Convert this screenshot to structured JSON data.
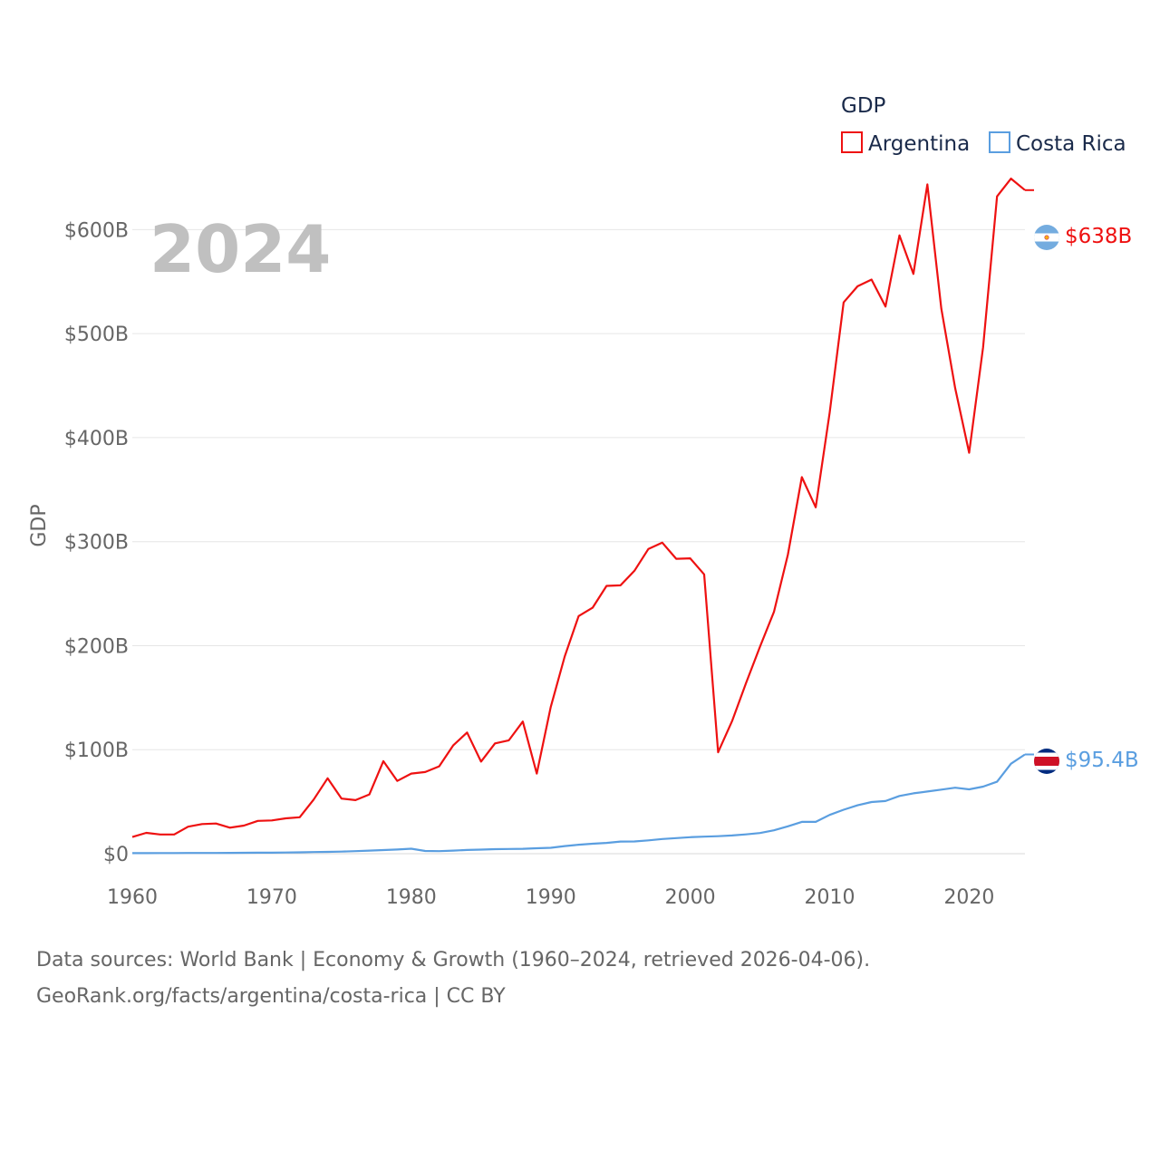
{
  "chart_data": {
    "type": "line",
    "title": "GDP",
    "year_label": "2024",
    "ylabel": "GDP",
    "xlim": [
      1960,
      2024
    ],
    "ylim": [
      0,
      650
    ],
    "x_ticks": [
      1960,
      1970,
      1980,
      1990,
      2000,
      2010,
      2020
    ],
    "x_tick_labels": [
      "1960",
      "1970",
      "1980",
      "1990",
      "2000",
      "2010",
      "2020"
    ],
    "y_ticks": [
      0,
      100,
      200,
      300,
      400,
      500,
      600
    ],
    "y_tick_labels": [
      "$0",
      "$100B",
      "$200B",
      "$300B",
      "$400B",
      "$500B",
      "$600B"
    ],
    "legend": {
      "title": "GDP",
      "entries": [
        "Argentina",
        "Costa Rica"
      ]
    },
    "series": [
      {
        "name": "Argentina",
        "color": "#ee1111",
        "end_label": "$638B",
        "flag": "argentina-flag-icon",
        "x": [
          1960,
          1961,
          1962,
          1963,
          1964,
          1965,
          1966,
          1967,
          1968,
          1969,
          1970,
          1971,
          1972,
          1973,
          1974,
          1975,
          1976,
          1977,
          1978,
          1979,
          1980,
          1981,
          1982,
          1983,
          1984,
          1985,
          1986,
          1987,
          1988,
          1989,
          1990,
          1991,
          1992,
          1993,
          1994,
          1995,
          1996,
          1997,
          1998,
          1999,
          2000,
          2001,
          2002,
          2003,
          2004,
          2005,
          2006,
          2007,
          2008,
          2009,
          2010,
          2011,
          2012,
          2013,
          2014,
          2015,
          2016,
          2017,
          2018,
          2019,
          2020,
          2021,
          2022,
          2023,
          2024
        ],
        "values": [
          16,
          20,
          18.5,
          18.5,
          26,
          28.5,
          29,
          25,
          27,
          31.5,
          32,
          34,
          35,
          52,
          72.5,
          53,
          51.5,
          57,
          89,
          70,
          77,
          78.5,
          84,
          104,
          116.5,
          88.5,
          106,
          109,
          127,
          77,
          141,
          189.5,
          228.5,
          236.5,
          257.5,
          258,
          272,
          293,
          299,
          283.5,
          284,
          268.5,
          97.5,
          127.5,
          164,
          199,
          232.5,
          287.5,
          362,
          333,
          424,
          530,
          545.5,
          552,
          526,
          594.5,
          557.5,
          643.5,
          524,
          447.5,
          385.5,
          487,
          632,
          649,
          638
        ]
      },
      {
        "name": "Costa Rica",
        "color": "#5a9ee0",
        "end_label": "$95.4B",
        "flag": "costa-rica-flag-icon",
        "x": [
          1960,
          1961,
          1962,
          1963,
          1964,
          1965,
          1966,
          1967,
          1968,
          1969,
          1970,
          1971,
          1972,
          1973,
          1974,
          1975,
          1976,
          1977,
          1978,
          1979,
          1980,
          1981,
          1982,
          1983,
          1984,
          1985,
          1986,
          1987,
          1988,
          1989,
          1990,
          1991,
          1992,
          1993,
          1994,
          1995,
          1996,
          1997,
          1998,
          1999,
          2000,
          2001,
          2002,
          2003,
          2004,
          2005,
          2006,
          2007,
          2008,
          2009,
          2010,
          2011,
          2012,
          2013,
          2014,
          2015,
          2016,
          2017,
          2018,
          2019,
          2020,
          2021,
          2022,
          2023,
          2024
        ],
        "values": [
          0.5,
          0.5,
          0.6,
          0.6,
          0.7,
          0.7,
          0.7,
          0.8,
          0.9,
          1.0,
          1.0,
          1.1,
          1.3,
          1.6,
          1.7,
          2.0,
          2.4,
          3.0,
          3.5,
          4.0,
          4.8,
          2.6,
          2.4,
          3.0,
          3.6,
          3.9,
          4.4,
          4.5,
          4.7,
          5.2,
          5.7,
          7.3,
          8.6,
          9.6,
          10.4,
          11.7,
          11.8,
          12.8,
          14.1,
          15.0,
          15.9,
          16.4,
          16.8,
          17.5,
          18.6,
          19.9,
          22.5,
          26.3,
          30.6,
          30.6,
          37.3,
          42.3,
          46.5,
          49.7,
          50.6,
          55.5,
          58.0,
          59.8,
          61.6,
          63.4,
          61.9,
          64.5,
          69.2,
          86.5,
          95.4
        ]
      }
    ]
  },
  "source": {
    "line1": "Data sources: World Bank | Economy & Growth (1960–2024, retrieved 2026-04-06).",
    "line2": "GeoRank.org/facts/argentina/costa-rica | CC BY"
  }
}
